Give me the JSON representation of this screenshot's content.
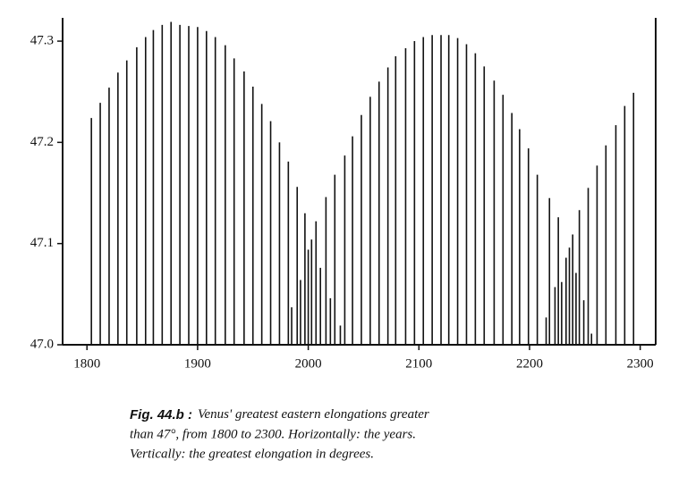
{
  "chart_data": {
    "type": "stem",
    "color": "#111111",
    "x": [
      1804,
      1812,
      1820,
      1828,
      1836,
      1845,
      1853,
      1860,
      1868,
      1876,
      1884,
      1892,
      1900,
      1908,
      1916,
      1925,
      1933,
      1942,
      1950,
      1958,
      1966,
      1974,
      1982,
      1985,
      1990,
      1993,
      1997,
      2000,
      2003,
      2007,
      2011,
      2016,
      2020,
      2024,
      2029,
      2033,
      2040,
      2048,
      2056,
      2064,
      2072,
      2079,
      2088,
      2096,
      2104,
      2112,
      2120,
      2127,
      2135,
      2143,
      2151,
      2159,
      2168,
      2176,
      2184,
      2191,
      2199,
      2207,
      2215,
      2218,
      2223,
      2226,
      2229,
      2233,
      2236,
      2239,
      2242,
      2245,
      2249,
      2253,
      2256,
      2261,
      2269,
      2278,
      2286,
      2294
    ],
    "values": [
      47.224,
      47.239,
      47.254,
      47.269,
      47.281,
      47.294,
      47.304,
      47.311,
      47.316,
      47.319,
      47.316,
      47.315,
      47.314,
      47.31,
      47.304,
      47.296,
      47.283,
      47.27,
      47.255,
      47.238,
      47.221,
      47.2,
      47.181,
      47.037,
      47.156,
      47.064,
      47.13,
      47.094,
      47.104,
      47.122,
      47.076,
      47.146,
      47.046,
      47.168,
      47.019,
      47.187,
      47.206,
      47.227,
      47.245,
      47.26,
      47.274,
      47.285,
      47.293,
      47.3,
      47.304,
      47.306,
      47.306,
      47.306,
      47.303,
      47.297,
      47.288,
      47.275,
      47.261,
      47.247,
      47.229,
      47.213,
      47.194,
      47.168,
      47.027,
      47.145,
      47.057,
      47.126,
      47.062,
      47.086,
      47.096,
      47.109,
      47.071,
      47.133,
      47.044,
      47.155,
      47.011,
      47.177,
      47.197,
      47.217,
      47.236,
      47.249
    ],
    "xlim": [
      1778,
      2314
    ],
    "ylim": [
      47.0,
      47.323
    ],
    "xticks": [
      1800,
      1900,
      2000,
      2100,
      2200,
      2300
    ],
    "yticks": [
      {
        "value": 47.0,
        "label": "47.0"
      },
      47.1,
      47.2,
      47.3
    ],
    "caption_label": "Fig. 44.b :",
    "caption": [
      "Venus' greatest eastern elongations greater",
      "than 47°, from 1800 to 2300. Horizontally: the years.",
      "Vertically: the greatest elongation in degrees."
    ]
  }
}
